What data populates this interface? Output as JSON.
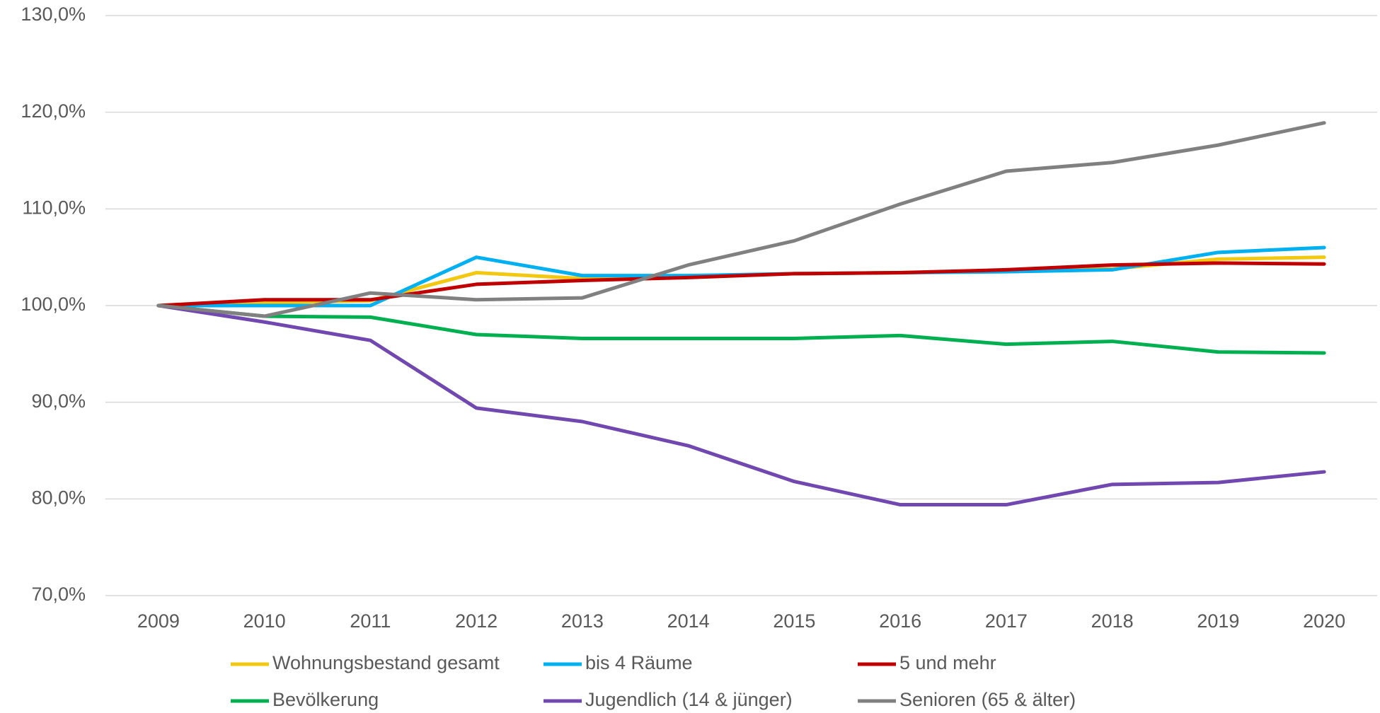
{
  "chart_data": {
    "type": "line",
    "categories": [
      "2009",
      "2010",
      "2011",
      "2012",
      "2013",
      "2014",
      "2015",
      "2016",
      "2017",
      "2018",
      "2019",
      "2020"
    ],
    "series": [
      {
        "name": "Wohnungsbestand gesamt",
        "color": "#f2c811",
        "values": [
          100,
          100.3,
          100.5,
          103.4,
          102.8,
          103.0,
          103.3,
          103.4,
          103.6,
          103.8,
          104.8,
          105.0
        ]
      },
      {
        "name": "bis 4 Räume",
        "color": "#00b0f0",
        "values": [
          100,
          100,
          100,
          105.0,
          103.1,
          103.1,
          103.3,
          103.4,
          103.5,
          103.7,
          105.5,
          106.0
        ]
      },
      {
        "name": "5 und mehr",
        "color": "#c00000",
        "values": [
          100,
          100.6,
          100.6,
          102.2,
          102.6,
          102.9,
          103.3,
          103.4,
          103.7,
          104.2,
          104.4,
          104.3
        ]
      },
      {
        "name": "Bevölkerung",
        "color": "#00b050",
        "values": [
          100,
          98.9,
          98.8,
          97.0,
          96.6,
          96.6,
          96.6,
          96.9,
          96.0,
          96.3,
          95.2,
          95.1
        ]
      },
      {
        "name": "Jugendlich (14 & jünger)",
        "color": "#7048b0",
        "values": [
          100,
          98.3,
          96.4,
          89.4,
          88.0,
          85.5,
          81.8,
          79.4,
          79.4,
          81.5,
          81.7,
          82.8
        ]
      },
      {
        "name": "Senioren (65 & älter)",
        "color": "#808080",
        "values": [
          100,
          98.9,
          101.3,
          100.6,
          100.8,
          104.2,
          106.7,
          110.5,
          113.9,
          114.8,
          116.6,
          118.9
        ]
      }
    ],
    "ylim": [
      70,
      130
    ],
    "yticks": [
      {
        "value": 70,
        "label": "70,0%"
      },
      {
        "value": 80,
        "label": "80,0%"
      },
      {
        "value": 90,
        "label": "90,0%"
      },
      {
        "value": 100,
        "label": "100,0%"
      },
      {
        "value": 110,
        "label": "110,0%"
      },
      {
        "value": 120,
        "label": "120,0%"
      },
      {
        "value": 130,
        "label": "130,0%"
      }
    ],
    "grid": true,
    "legend": "bottom"
  }
}
